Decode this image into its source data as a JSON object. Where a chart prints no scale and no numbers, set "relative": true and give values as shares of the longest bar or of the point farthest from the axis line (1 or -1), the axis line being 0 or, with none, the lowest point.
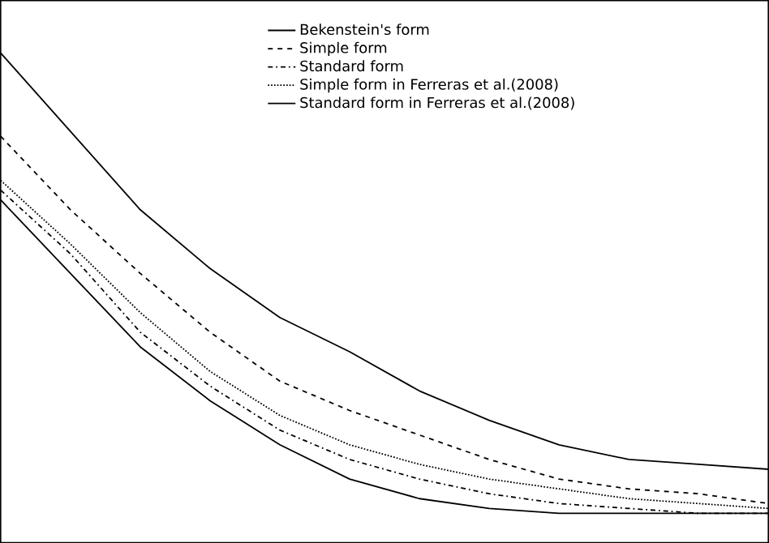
{
  "chart_data": {
    "type": "line",
    "relative": true,
    "legend": "top",
    "marker": "none",
    "categories": [
      null,
      null,
      null,
      null,
      null,
      null,
      null,
      null,
      null,
      null,
      null,
      null
    ],
    "series": [
      {
        "name": "Bekenstein's form",
        "color": "#000000",
        "line_style": "solid",
        "values": [
          1,
          0.84,
          0.68,
          0.56,
          0.46,
          0.39,
          0.31,
          0.25,
          0.2,
          0.17,
          0.16,
          0.15
        ]
      },
      {
        "name": "Simple form",
        "color": "#000000",
        "line_style": "dashed",
        "values": [
          0.83,
          0.68,
          0.55,
          0.43,
          0.33,
          0.27,
          0.22,
          0.17,
          0.13,
          0.11,
          0.1,
          0.08
        ]
      },
      {
        "name": "Standard form",
        "color": "#000000",
        "line_style": "dashdot",
        "values": [
          0.72,
          0.59,
          0.43,
          0.32,
          0.23,
          0.17,
          0.13,
          0.1,
          0.08,
          0.07,
          0.06,
          0.06
        ]
      },
      {
        "name": "Simple form in Ferreras et al.(2008)",
        "color": "#000000",
        "line_style": "dotted",
        "values": [
          0.74,
          0.61,
          0.47,
          0.35,
          0.26,
          0.2,
          0.16,
          0.13,
          0.11,
          0.09,
          0.08,
          0.07
        ]
      },
      {
        "name": "Standard form in Ferreras et al.(2008)",
        "color": "#000000",
        "line_style": "solid",
        "values": [
          0.7,
          0.55,
          0.4,
          0.29,
          0.2,
          0.13,
          0.09,
          0.07,
          0.06,
          0.06,
          0.06,
          0.06
        ]
      }
    ]
  }
}
